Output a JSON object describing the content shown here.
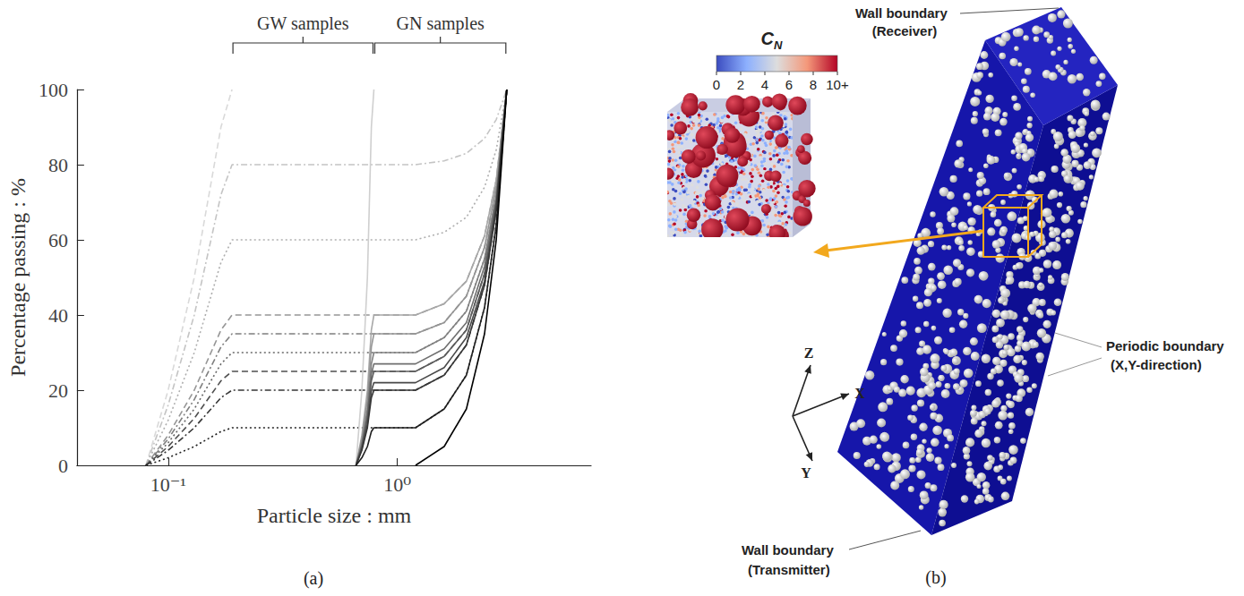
{
  "chart_data": {
    "type": "line",
    "panel": "(a)",
    "xlabel": "Particle size : mm",
    "ylabel": "Percentage passing : %",
    "log": "x",
    "grid": false,
    "xlim": [
      0.04,
      7
    ],
    "xticks": [
      {
        "value": 0.1,
        "label": "10⁻¹"
      },
      {
        "value": 1,
        "label": "10⁰"
      }
    ],
    "ylim": [
      0,
      100
    ],
    "yticks": [
      0,
      20,
      40,
      60,
      80,
      100
    ],
    "annotations": [
      {
        "text": "GW samples",
        "x": [
          0.19,
          0.79
        ]
      },
      {
        "text": "GN samples",
        "x": [
          0.79,
          3.0
        ]
      }
    ],
    "series": [
      {
        "color": "#d9d9d9",
        "line_style": "dashed",
        "x": [
          0.08,
          0.1,
          0.13,
          0.17,
          0.19
        ],
        "values": [
          0,
          20,
          50,
          90,
          100
        ]
      },
      {
        "color": "#c4c4c4",
        "line_style": "dashdot",
        "x": [
          0.08,
          0.1,
          0.13,
          0.17,
          0.19,
          1.2,
          1.6,
          2.0,
          2.4,
          2.7,
          3.0
        ],
        "values": [
          0,
          16,
          40,
          72,
          80,
          80,
          81,
          83,
          87,
          92,
          100
        ]
      },
      {
        "color": "#aeaeae",
        "line_style": "dotted",
        "x": [
          0.08,
          0.1,
          0.13,
          0.17,
          0.19,
          1.2,
          1.6,
          2.0,
          2.4,
          2.7,
          3.0
        ],
        "values": [
          0,
          12,
          30,
          54,
          60,
          60,
          62,
          66,
          74,
          84,
          100
        ]
      },
      {
        "color": "#969696",
        "line_style": "dashed",
        "x": [
          0.08,
          0.1,
          0.13,
          0.17,
          0.19,
          1.2,
          1.6,
          2.0,
          2.4,
          2.7,
          3.0
        ],
        "values": [
          0,
          8,
          20,
          36,
          40,
          40,
          43,
          49,
          61,
          76,
          100
        ]
      },
      {
        "color": "#7f7f7f",
        "line_style": "dashdot",
        "x": [
          0.08,
          0.1,
          0.13,
          0.17,
          0.19,
          1.2,
          1.6,
          2.0,
          2.4,
          2.7,
          3.0
        ],
        "values": [
          0,
          7,
          17.5,
          31.5,
          35,
          35,
          38,
          45,
          58,
          74,
          100
        ]
      },
      {
        "color": "#676767",
        "line_style": "dotted",
        "x": [
          0.08,
          0.1,
          0.13,
          0.17,
          0.19,
          1.2,
          1.6,
          2.0,
          2.4,
          2.7,
          3.0
        ],
        "values": [
          0,
          6,
          15,
          27,
          30,
          30,
          34,
          41,
          55,
          72,
          100
        ]
      },
      {
        "color": "#4f4f4f",
        "line_style": "dashed",
        "x": [
          0.08,
          0.1,
          0.13,
          0.17,
          0.19,
          1.2,
          1.6,
          2.0,
          2.4,
          2.7,
          3.0
        ],
        "values": [
          0,
          5,
          12.5,
          22.5,
          25,
          25,
          29,
          36,
          51,
          70,
          100
        ]
      },
      {
        "color": "#373737",
        "line_style": "dashdot",
        "x": [
          0.08,
          0.1,
          0.13,
          0.17,
          0.19,
          1.2,
          1.6,
          2.0,
          2.4,
          2.7,
          3.0
        ],
        "values": [
          0,
          4,
          10,
          18,
          20,
          20,
          24,
          32,
          48,
          68,
          100
        ]
      },
      {
        "color": "#1f1f1f",
        "line_style": "dotted",
        "x": [
          0.08,
          0.1,
          0.13,
          0.17,
          0.19,
          1.2,
          1.6,
          2.0,
          2.4,
          2.7,
          3.0
        ],
        "values": [
          0,
          2,
          5,
          9,
          10,
          10,
          15,
          24,
          42,
          64,
          100
        ]
      },
      {
        "color": "#cfcfcf",
        "line_style": "solid",
        "x": [
          0.66,
          0.7,
          0.74,
          0.77,
          0.79
        ],
        "values": [
          0,
          20,
          50,
          90,
          100
        ]
      },
      {
        "color": "#a8a8a8",
        "line_style": "solid",
        "x": [
          0.66,
          0.7,
          0.74,
          0.77,
          0.79,
          1.2,
          1.6,
          2.0,
          2.4,
          2.7,
          3.0
        ],
        "values": [
          0,
          8,
          20,
          36,
          40,
          40,
          43,
          49,
          61,
          76,
          100
        ]
      },
      {
        "color": "#959595",
        "line_style": "solid",
        "x": [
          0.66,
          0.7,
          0.74,
          0.77,
          0.79,
          1.2,
          1.6,
          2.0,
          2.4,
          2.7,
          3.0
        ],
        "values": [
          0,
          7,
          17.5,
          31.5,
          35,
          35,
          38,
          45,
          58,
          74,
          100
        ]
      },
      {
        "color": "#828282",
        "line_style": "solid",
        "x": [
          0.66,
          0.7,
          0.74,
          0.77,
          0.79,
          1.2,
          1.6,
          2.0,
          2.4,
          2.7,
          3.0
        ],
        "values": [
          0,
          6,
          15,
          27,
          30,
          30,
          34,
          41,
          55,
          72,
          100
        ]
      },
      {
        "color": "#6f6f6f",
        "line_style": "solid",
        "x": [
          0.66,
          0.7,
          0.74,
          0.77,
          0.79,
          1.2,
          1.6,
          2.0,
          2.4,
          2.7,
          3.0
        ],
        "values": [
          0,
          5.4,
          13.5,
          24.3,
          27,
          27,
          31,
          38,
          53,
          71,
          100
        ]
      },
      {
        "color": "#5c5c5c",
        "line_style": "solid",
        "x": [
          0.66,
          0.7,
          0.74,
          0.77,
          0.79,
          1.2,
          1.6,
          2.0,
          2.4,
          2.7,
          3.0
        ],
        "values": [
          0,
          5,
          12.5,
          22.5,
          25,
          25,
          29,
          36,
          51,
          70,
          100
        ]
      },
      {
        "color": "#494949",
        "line_style": "solid",
        "x": [
          0.66,
          0.7,
          0.74,
          0.77,
          0.79,
          1.2,
          1.6,
          2.0,
          2.4,
          2.7,
          3.0
        ],
        "values": [
          0,
          4.4,
          11,
          19.8,
          22,
          22,
          26,
          34,
          49,
          69,
          100
        ]
      },
      {
        "color": "#363636",
        "line_style": "solid",
        "x": [
          0.66,
          0.7,
          0.74,
          0.77,
          0.79,
          1.2,
          1.6,
          2.0,
          2.4,
          2.7,
          3.0
        ],
        "values": [
          0,
          4,
          10,
          18,
          20,
          20,
          24,
          32,
          48,
          68,
          100
        ]
      },
      {
        "color": "#1f1f1f",
        "line_style": "solid",
        "x": [
          0.66,
          0.7,
          0.74,
          0.77,
          0.79,
          1.2,
          1.6,
          2.0,
          2.4,
          2.7,
          3.0
        ],
        "values": [
          0,
          2,
          5,
          9,
          10,
          10,
          15,
          24,
          42,
          64,
          100
        ]
      },
      {
        "color": "#000000",
        "line_style": "solid",
        "x": [
          1.2,
          1.6,
          2.0,
          2.4,
          2.7,
          3.0
        ],
        "values": [
          0,
          5,
          15,
          35,
          60,
          100
        ]
      }
    ]
  },
  "panel_b": {
    "panel": "(b)",
    "colorbar": {
      "title": {
        "text": "C",
        "subscript": "N"
      },
      "range": [
        0,
        10
      ],
      "ticks": [
        0,
        2,
        4,
        6,
        8,
        {
          "value": 10,
          "label": "10+"
        }
      ]
    },
    "boundaries": [
      {
        "lines": [
          "Wall boundary",
          "(Receiver)"
        ]
      },
      {
        "lines": [
          "Periodic boundary",
          "(X,Y-direction)"
        ]
      },
      {
        "lines": [
          "Wall boundary",
          "(Transmitter)"
        ]
      }
    ],
    "axes": [
      "Z",
      "X",
      "Y"
    ]
  }
}
